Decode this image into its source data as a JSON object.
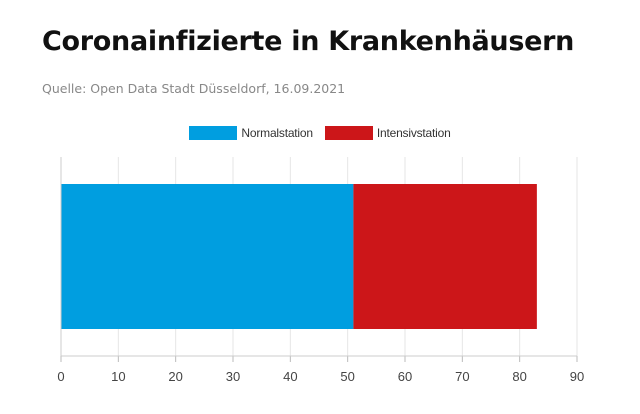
{
  "header": {
    "title": "Coronainfizierte in Krankenhäusern",
    "source": "Quelle: Open Data Stadt Düsseldorf, 16.09.2021"
  },
  "chart_data": {
    "type": "bar",
    "orientation": "horizontal",
    "stacked": true,
    "categories": [
      ""
    ],
    "series": [
      {
        "name": "Normalstation",
        "values": [
          51
        ],
        "color": "#009ee0"
      },
      {
        "name": "Intensivstation",
        "values": [
          32
        ],
        "color": "#cc1619"
      }
    ],
    "title": "Coronainfizierte in Krankenhäusern",
    "xlim": [
      0,
      90
    ],
    "xticks": [
      0,
      10,
      20,
      30,
      40,
      50,
      60,
      70,
      80,
      90
    ],
    "grid": true,
    "legend_position": "top-center"
  }
}
